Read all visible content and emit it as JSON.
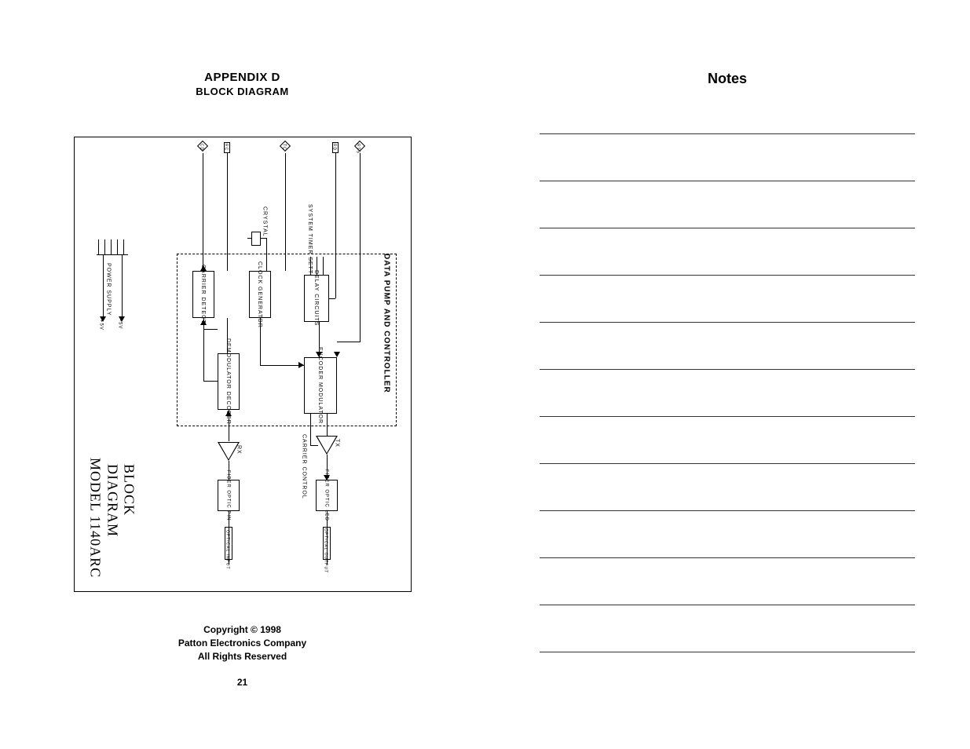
{
  "left": {
    "appendix": "APPENDIX D",
    "subtitle": "BLOCK DIAGRAM",
    "copyright_l1": "Copyright © 1998",
    "copyright_l2": "Patton Electronics Company",
    "copyright_l3": "All Rights Reserved",
    "page_number": "21"
  },
  "right": {
    "title": "Notes",
    "line_count": 12
  },
  "diagram": {
    "title_line1": "MODEL 1140ARC",
    "title_line2": "BLOCK DIAGRAM",
    "region_label": "DATA PUMP AND CONTROLLER",
    "blocks": {
      "power_supply": "POWER SUPPLY",
      "carrier_detect": "CARRIER DETECT",
      "clock_generator": "CLOCK GENERATOR",
      "delay_circuits": "DELAY CIRCUITS",
      "demod_decoder": "DEMODULATOR DECODER",
      "encoder_modulator": "ENCODER MODULATOR",
      "fiber_optic_pin": "FIBER OPTIC PIN",
      "fiber_optic_led": "FIBER OPTIC LED"
    },
    "labels": {
      "crystal": "CRYSTAL",
      "system_timer_setting": "SYSTEM TIMER SETTING",
      "carrier_control": "CARRIER CONTROL",
      "rx": "RX",
      "tx": "TX",
      "plus5v": "+5V",
      "minus5v": "-5V",
      "optical_input": "OPTICAL INPUT",
      "optical_output": "OPTICAL OUTPUT"
    },
    "ports": {
      "p1": "CD",
      "p2": "RC",
      "p3": "TC",
      "p4": "RD",
      "p5": "RTS",
      "p6": "RTC"
    },
    "colors": {
      "stroke": "#000000",
      "bg": "#ffffff"
    },
    "font_sizes": {
      "tiny": 7,
      "title": 18
    },
    "title_font": "Times New Roman"
  }
}
